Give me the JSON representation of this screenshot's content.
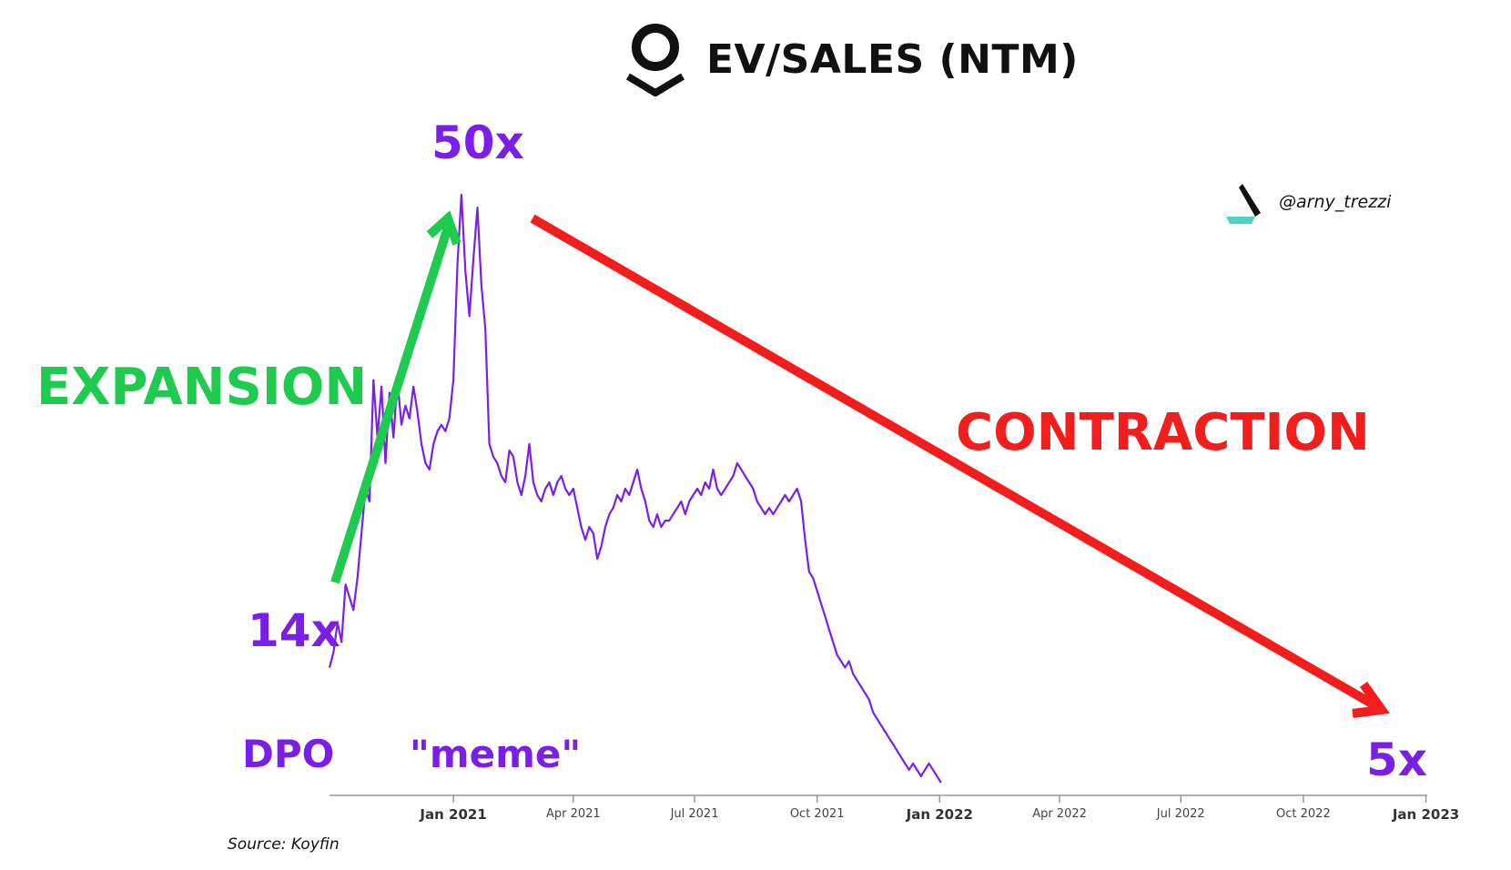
{
  "header": {
    "title": "EV/SALES (NTM)",
    "logo_icon": "palantir-logo-icon"
  },
  "watermark": {
    "handle": "@arny_trezzi",
    "logo_icon": "author-logo-icon"
  },
  "annotations": {
    "start_multiple": "14x",
    "peak_multiple": "50x",
    "end_multiple": "5x",
    "dpo_label": "DPO",
    "meme_label": "\"meme\"",
    "expansion_label": "EXPANSION",
    "contraction_label": "CONTRACTION"
  },
  "source": "Source: Koyfin",
  "colors": {
    "series": "#7b1fe8",
    "expansion": "#1ecb4f",
    "contraction": "#f21d1d",
    "axis": "#999999",
    "text": "#111111"
  },
  "chart_data": {
    "type": "line",
    "title": "EV/SALES (NTM)",
    "xlabel": "",
    "ylabel": "",
    "x_range": [
      "2020-09-30",
      "2023-01-02"
    ],
    "y_range": [
      4,
      52
    ],
    "grid": false,
    "legend": "none",
    "x_ticks": [
      {
        "date": "2021-01-01",
        "label": "Jan 2021",
        "major": true
      },
      {
        "date": "2021-04-01",
        "label": "Apr 2021",
        "major": false
      },
      {
        "date": "2021-07-01",
        "label": "Jul 2021",
        "major": false
      },
      {
        "date": "2021-10-01",
        "label": "Oct 2021",
        "major": false
      },
      {
        "date": "2022-01-01",
        "label": "Jan 2022",
        "major": true
      },
      {
        "date": "2022-04-01",
        "label": "Apr 2022",
        "major": false
      },
      {
        "date": "2022-07-01",
        "label": "Jul 2022",
        "major": false
      },
      {
        "date": "2022-10-01",
        "label": "Oct 2022",
        "major": false
      },
      {
        "date": "2023-01-01",
        "label": "Jan 2023",
        "major": true
      }
    ],
    "series": [
      {
        "points": [
          [
            "2020-09-30",
            14.0
          ],
          [
            "2020-10-03",
            15.2
          ],
          [
            "2020-10-06",
            17.5
          ],
          [
            "2020-10-09",
            16.0
          ],
          [
            "2020-10-12",
            20.5
          ],
          [
            "2020-10-15",
            19.5
          ],
          [
            "2020-10-18",
            18.5
          ],
          [
            "2020-10-21",
            21.0
          ],
          [
            "2020-10-24",
            24.5
          ],
          [
            "2020-10-27",
            28.0
          ],
          [
            "2020-10-30",
            27.0
          ],
          [
            "2020-11-02",
            36.5
          ],
          [
            "2020-11-05",
            32.0
          ],
          [
            "2020-11-08",
            36.0
          ],
          [
            "2020-11-11",
            30.0
          ],
          [
            "2020-11-14",
            35.5
          ],
          [
            "2020-11-17",
            32.0
          ],
          [
            "2020-11-20",
            36.5
          ],
          [
            "2020-11-23",
            33.0
          ],
          [
            "2020-11-26",
            34.5
          ],
          [
            "2020-11-29",
            33.5
          ],
          [
            "2020-12-02",
            36.0
          ],
          [
            "2020-12-05",
            34.0
          ],
          [
            "2020-12-08",
            31.5
          ],
          [
            "2020-12-11",
            30.0
          ],
          [
            "2020-12-14",
            29.5
          ],
          [
            "2020-12-17",
            31.5
          ],
          [
            "2020-12-20",
            32.5
          ],
          [
            "2020-12-23",
            33.0
          ],
          [
            "2020-12-26",
            32.5
          ],
          [
            "2020-12-29",
            33.5
          ],
          [
            "2021-01-01",
            36.5
          ],
          [
            "2021-01-04",
            45.5
          ],
          [
            "2021-01-07",
            51.0
          ],
          [
            "2021-01-10",
            45.0
          ],
          [
            "2021-01-13",
            41.5
          ],
          [
            "2021-01-16",
            46.0
          ],
          [
            "2021-01-19",
            50.0
          ],
          [
            "2021-01-22",
            44.0
          ],
          [
            "2021-01-25",
            40.5
          ],
          [
            "2021-01-28",
            31.5
          ],
          [
            "2021-01-31",
            30.5
          ],
          [
            "2021-02-03",
            30.0
          ],
          [
            "2021-02-06",
            29.0
          ],
          [
            "2021-02-09",
            28.5
          ],
          [
            "2021-02-12",
            31.0
          ],
          [
            "2021-02-15",
            30.5
          ],
          [
            "2021-02-18",
            28.5
          ],
          [
            "2021-02-21",
            27.5
          ],
          [
            "2021-02-24",
            29.0
          ],
          [
            "2021-02-27",
            31.5
          ],
          [
            "2021-03-02",
            28.5
          ],
          [
            "2021-03-05",
            27.5
          ],
          [
            "2021-03-08",
            27.0
          ],
          [
            "2021-03-11",
            28.0
          ],
          [
            "2021-03-14",
            28.5
          ],
          [
            "2021-03-17",
            27.5
          ],
          [
            "2021-03-20",
            28.5
          ],
          [
            "2021-03-23",
            29.0
          ],
          [
            "2021-03-26",
            28.0
          ],
          [
            "2021-03-29",
            27.5
          ],
          [
            "2021-04-01",
            28.0
          ],
          [
            "2021-04-04",
            26.5
          ],
          [
            "2021-04-07",
            25.0
          ],
          [
            "2021-04-10",
            24.0
          ],
          [
            "2021-04-13",
            25.0
          ],
          [
            "2021-04-16",
            24.5
          ],
          [
            "2021-04-19",
            22.5
          ],
          [
            "2021-04-22",
            23.5
          ],
          [
            "2021-04-25",
            25.0
          ],
          [
            "2021-04-28",
            26.0
          ],
          [
            "2021-05-01",
            26.5
          ],
          [
            "2021-05-04",
            27.5
          ],
          [
            "2021-05-07",
            27.0
          ],
          [
            "2021-05-10",
            28.0
          ],
          [
            "2021-05-13",
            27.5
          ],
          [
            "2021-05-16",
            28.5
          ],
          [
            "2021-05-19",
            29.5
          ],
          [
            "2021-05-22",
            28.0
          ],
          [
            "2021-05-25",
            27.0
          ],
          [
            "2021-05-28",
            25.5
          ],
          [
            "2021-05-31",
            25.0
          ],
          [
            "2021-06-03",
            26.0
          ],
          [
            "2021-06-06",
            25.0
          ],
          [
            "2021-06-09",
            25.5
          ],
          [
            "2021-06-12",
            25.5
          ],
          [
            "2021-06-15",
            26.0
          ],
          [
            "2021-06-18",
            26.5
          ],
          [
            "2021-06-21",
            27.0
          ],
          [
            "2021-06-24",
            26.0
          ],
          [
            "2021-06-27",
            27.0
          ],
          [
            "2021-06-30",
            27.5
          ],
          [
            "2021-07-03",
            28.0
          ],
          [
            "2021-07-06",
            27.5
          ],
          [
            "2021-07-09",
            28.5
          ],
          [
            "2021-07-12",
            28.0
          ],
          [
            "2021-07-15",
            29.5
          ],
          [
            "2021-07-18",
            28.0
          ],
          [
            "2021-07-21",
            27.5
          ],
          [
            "2021-07-24",
            28.0
          ],
          [
            "2021-07-27",
            28.5
          ],
          [
            "2021-07-30",
            29.0
          ],
          [
            "2021-08-02",
            30.0
          ],
          [
            "2021-08-05",
            29.5
          ],
          [
            "2021-08-08",
            29.0
          ],
          [
            "2021-08-11",
            28.5
          ],
          [
            "2021-08-14",
            28.0
          ],
          [
            "2021-08-17",
            27.0
          ],
          [
            "2021-08-20",
            26.5
          ],
          [
            "2021-08-23",
            26.0
          ],
          [
            "2021-08-26",
            26.5
          ],
          [
            "2021-08-29",
            26.0
          ],
          [
            "2021-09-01",
            26.5
          ],
          [
            "2021-09-04",
            27.0
          ],
          [
            "2021-09-07",
            27.5
          ],
          [
            "2021-09-10",
            27.0
          ],
          [
            "2021-09-13",
            27.5
          ],
          [
            "2021-09-16",
            28.0
          ],
          [
            "2021-09-19",
            27.0
          ],
          [
            "2021-09-22",
            24.0
          ],
          [
            "2021-09-25",
            21.5
          ],
          [
            "2021-09-28",
            21.0
          ],
          [
            "2021-10-01",
            20.0
          ],
          [
            "2021-10-04",
            19.0
          ],
          [
            "2021-10-07",
            18.0
          ],
          [
            "2021-10-10",
            17.0
          ],
          [
            "2021-10-13",
            16.0
          ],
          [
            "2021-10-16",
            15.0
          ],
          [
            "2021-10-19",
            14.5
          ],
          [
            "2021-10-22",
            14.0
          ],
          [
            "2021-10-25",
            14.5
          ],
          [
            "2021-10-28",
            13.5
          ],
          [
            "2021-10-31",
            13.0
          ],
          [
            "2021-11-03",
            12.5
          ],
          [
            "2021-11-06",
            12.0
          ],
          [
            "2021-11-09",
            11.5
          ],
          [
            "2021-11-12",
            10.5
          ],
          [
            "2021-11-15",
            10.0
          ],
          [
            "2021-11-18",
            9.5
          ],
          [
            "2021-11-21",
            9.0
          ],
          [
            "2021-11-24",
            8.5
          ],
          [
            "2021-11-27",
            8.0
          ],
          [
            "2021-11-30",
            7.5
          ],
          [
            "2021-12-03",
            7.0
          ],
          [
            "2021-12-06",
            6.5
          ],
          [
            "2021-12-09",
            6.0
          ],
          [
            "2021-12-12",
            6.5
          ],
          [
            "2021-12-15",
            6.0
          ],
          [
            "2021-12-18",
            5.5
          ],
          [
            "2021-12-21",
            6.0
          ],
          [
            "2021-12-24",
            6.5
          ],
          [
            "2021-12-27",
            6.0
          ],
          [
            "2021-12-30",
            5.5
          ],
          [
            "2022-01-02",
            5.0
          ]
        ]
      }
    ]
  }
}
